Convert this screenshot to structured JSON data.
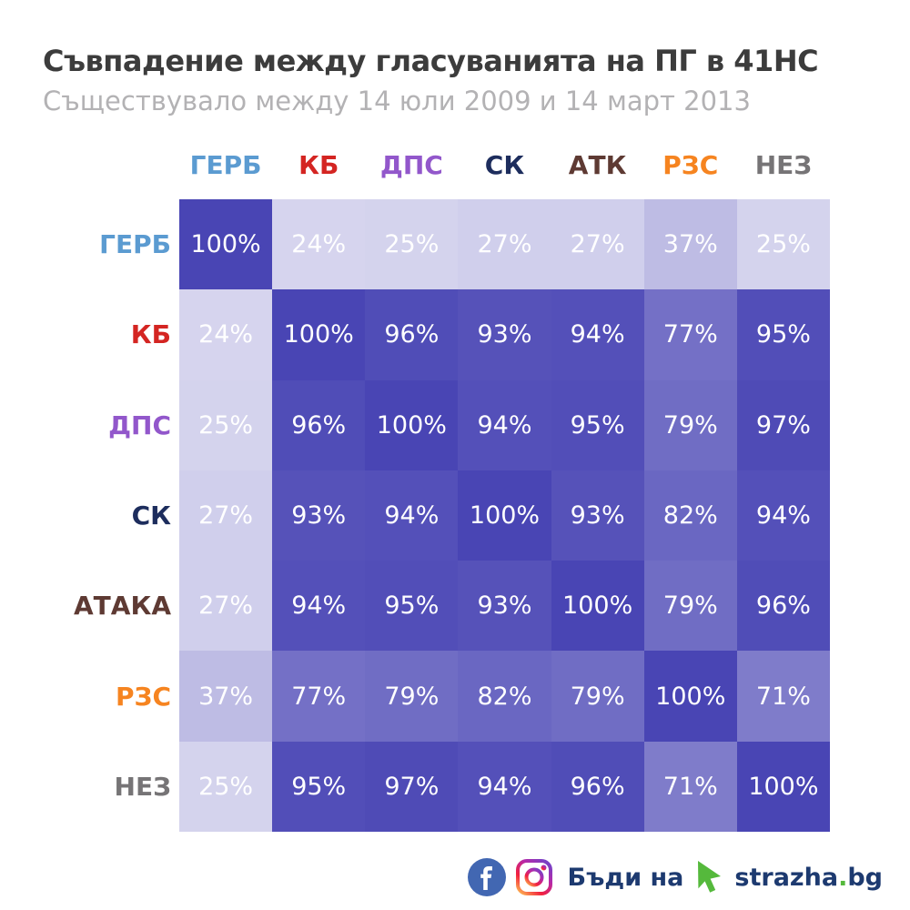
{
  "title": "Съвпадение между гласуванията на ПГ в 41НС",
  "subtitle": "Съществувало между 14 юли 2009 и 14 март 2013",
  "colors": {
    "title": "#3c3c3c",
    "subtitle": "#b3b2b4",
    "cell_text": "#ffffff",
    "footer_text": "#1d3a70",
    "footer_green": "#55b93c",
    "facebook_blue": "#4267b2"
  },
  "chart_data": {
    "type": "heatmap",
    "title": "Съвпадение между гласуванията на ПГ в 41НС",
    "subtitle": "Съществувало между 14 юли 2009 и 14 март 2013",
    "columns": [
      {
        "label": "ГЕРБ",
        "color": "#5b9bd1"
      },
      {
        "label": "КБ",
        "color": "#d42522"
      },
      {
        "label": "ДПС",
        "color": "#9257cb"
      },
      {
        "label": "СК",
        "color": "#1d2d5d"
      },
      {
        "label": "АТК",
        "color": "#5e3a33"
      },
      {
        "label": "РЗС",
        "color": "#f68420"
      },
      {
        "label": "НЕЗ",
        "color": "#767476"
      }
    ],
    "rows": [
      {
        "label": "ГЕРБ",
        "color": "#5b9bd1"
      },
      {
        "label": "КБ",
        "color": "#d42522"
      },
      {
        "label": "ДПС",
        "color": "#9257cb"
      },
      {
        "label": "СК",
        "color": "#1d2d5d"
      },
      {
        "label": "АТАКА",
        "color": "#5e3a33"
      },
      {
        "label": "РЗС",
        "color": "#f68420"
      },
      {
        "label": "НЕЗ",
        "color": "#767476"
      }
    ],
    "values": [
      [
        100,
        24,
        25,
        27,
        27,
        37,
        25
      ],
      [
        24,
        100,
        96,
        93,
        94,
        77,
        95
      ],
      [
        25,
        96,
        100,
        94,
        95,
        79,
        97
      ],
      [
        27,
        93,
        94,
        100,
        93,
        82,
        94
      ],
      [
        27,
        94,
        95,
        93,
        100,
        79,
        96
      ],
      [
        37,
        77,
        79,
        82,
        79,
        100,
        71
      ],
      [
        25,
        95,
        97,
        94,
        96,
        71,
        100
      ]
    ],
    "value_suffix": "%",
    "colormap": {
      "low_color": "#dddcf1",
      "high_color": "#4945b4",
      "domain": [
        20,
        100
      ]
    },
    "legend": "none",
    "grid": false
  },
  "footer": {
    "icons": [
      "facebook-icon",
      "instagram-icon",
      "cursor-icon"
    ],
    "cta_text": "Бъди на",
    "brand_prefix": "strazha",
    "brand_dot": ".",
    "brand_suffix": "bg"
  }
}
